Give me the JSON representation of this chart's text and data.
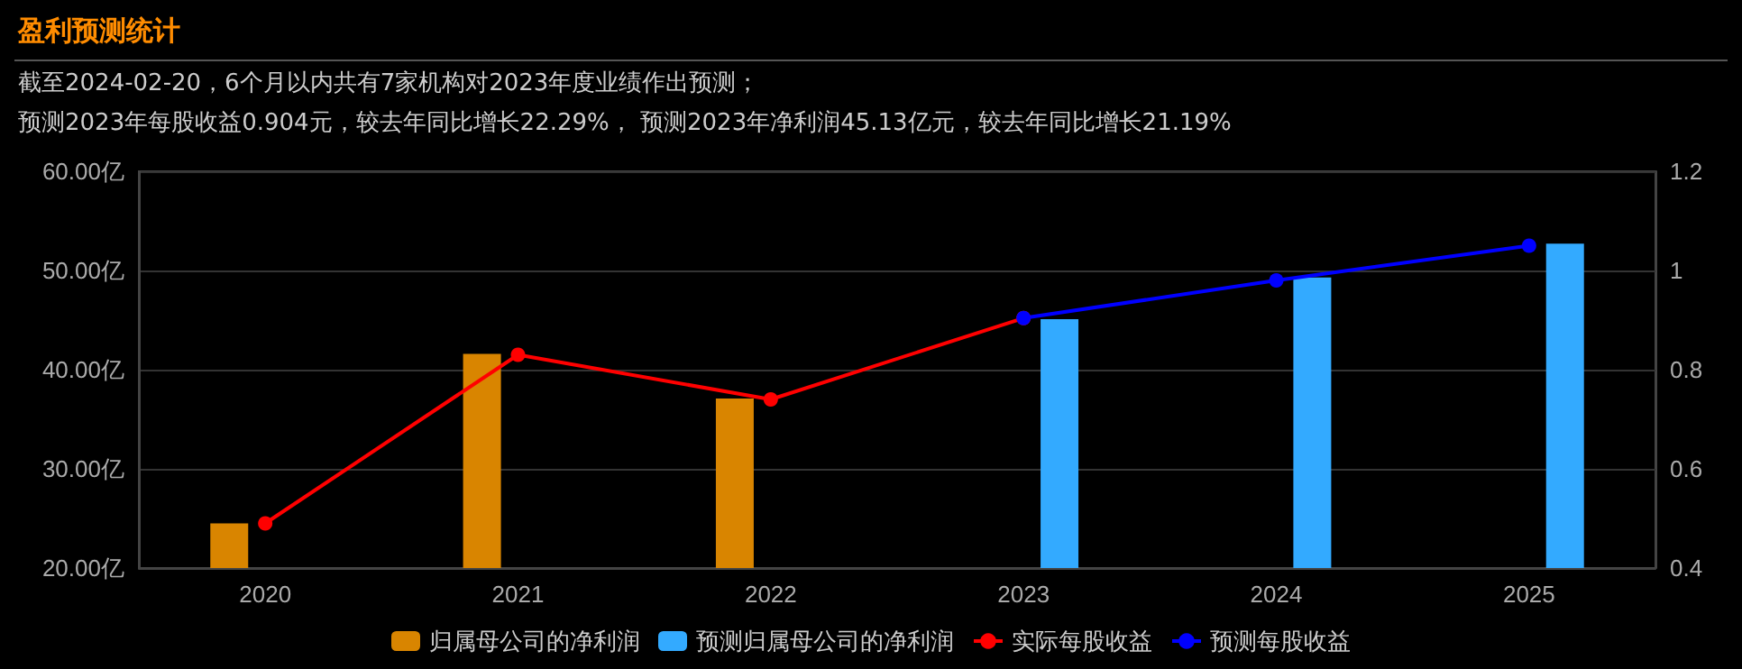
{
  "chart_data": {
    "type": "bar",
    "title": "盈利预测统计",
    "subtitle": "截至2024-02-20，6个月以内共有7家机构对2023年度业绩作出预测；",
    "annotations": [
      "预测2023年每股收益0.904元，较去年同比增长22.29%， 预测2023年净利润45.13亿元，较去年同比增长21.19%"
    ],
    "categories": [
      "2020",
      "2021",
      "2022",
      "2023",
      "2024",
      "2025"
    ],
    "series": [
      {
        "name": "归属母公司的净利润",
        "color": "#d98500",
        "values": [
          24.5,
          41.6,
          37.1,
          null,
          null,
          null
        ]
      },
      {
        "name": "预测归属母公司的净利润",
        "color": "#33aaff",
        "values": [
          null,
          null,
          null,
          45.1,
          49.3,
          52.7
        ]
      },
      {
        "name": "实际每股收益",
        "type": "line",
        "axis": "y2",
        "color": "#ff0000",
        "values": [
          0.49,
          0.83,
          0.74,
          0.904,
          null,
          null
        ]
      },
      {
        "name": "预测每股收益",
        "type": "line",
        "axis": "y2",
        "color": "#0000ff",
        "values": [
          null,
          null,
          null,
          0.904,
          0.98,
          1.05
        ]
      }
    ],
    "ylim": [
      20,
      60
    ],
    "yticks": [
      {
        "value": 20,
        "label": "20.00亿"
      },
      {
        "value": 30,
        "label": "30.00亿"
      },
      {
        "value": 40,
        "label": "40.00亿"
      },
      {
        "value": 50,
        "label": "50.00亿"
      },
      {
        "value": 60,
        "label": "60.00亿"
      }
    ],
    "y2lim": [
      0.4,
      1.2
    ],
    "y2ticks": [
      0.4,
      0.6,
      0.8,
      1,
      1.2
    ],
    "grid": "y",
    "legend": "bottom",
    "marker": "circle",
    "line_style": "solid"
  }
}
